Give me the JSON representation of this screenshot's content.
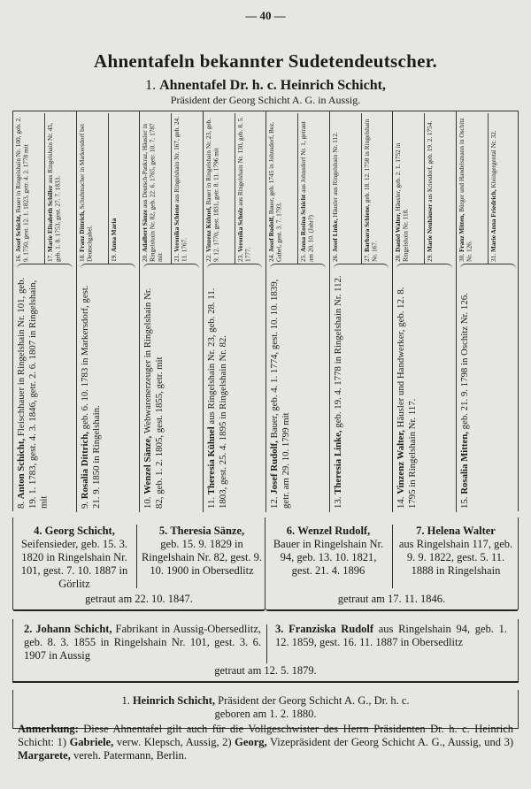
{
  "page_number": "— 40 —",
  "title": "Ahnentafeln bekannter Sudetendeutscher.",
  "subtitle_number": "1.",
  "subtitle": "Ahnentafel Dr. h. c. Heinrich Schicht,",
  "subtitle_sub": "Präsident der Georg Schicht A. G. in Aussig.",
  "great_grandparents": [
    {
      "no": "16.",
      "name": "Josef Schicht,",
      "text": "Bauer in Ringelshain Nr. 100, geb. 2. 9. 1750, gest. 12. 1. 1823, getr. 4. 2. 1778 mit"
    },
    {
      "no": "17.",
      "name": "Marie Elisabeth Schiller",
      "text": "aus Ringelshain Nr. 45, geb. 1. 8. 1753, gest. 27. 7. 1833."
    },
    {
      "no": "18.",
      "name": "Franz Dittrich,",
      "text": "Schuhmacher in Markersdorf bei Deutschgabel."
    },
    {
      "no": "19.",
      "name": "Anna Maria",
      "text": ""
    },
    {
      "no": "20.",
      "name": "Adalbert Sänze",
      "text": "aus Deutsch-Pankraz, Häusler in Ringelshain Nr. 82, geb. 22. 6. 1765, getr. 10. 7. 1787 mit"
    },
    {
      "no": "21.",
      "name": "Veronika Schiene",
      "text": "aus Ringelshain Nr. 167, geb. 24. 11. 1767."
    },
    {
      "no": "22.",
      "name": "Vinzenz Kühnel,",
      "text": "Bauer in Ringelshain Nr. 23, geb. 9. 12. 1770, gest. 1831, getr. 8. 11. 1796 mit"
    },
    {
      "no": "23.",
      "name": "Veronika Scholz",
      "text": "aus Ringelshain Nr. 130, geb. 8. 5. 1777."
    },
    {
      "no": "24.",
      "name": "Josef Rudolf,",
      "text": "Bauer, geb. 1745 in Johnsdorf, Bez. Gabel, gest. 3. 7. 1793."
    },
    {
      "no": "25.",
      "name": "Anna Rosina Schicht",
      "text": "aus Johnsdorf Nr. 1, getraut am 20. 10. (Jahr?)"
    },
    {
      "no": "26.",
      "name": "Josef Linke,",
      "text": "Häusler aus Ringelshain Nr. 112."
    },
    {
      "no": "27.",
      "name": "Barbara Schiene,",
      "text": "geb. 18. 12. 1758 in Ringelshain Nr. 167."
    },
    {
      "no": "28.",
      "name": "Daniel Walter,",
      "text": "Häusler, geb. 2. 1. 1752 in Ringelshain Nr. 118."
    },
    {
      "no": "29.",
      "name": "Marie Neuhäuser",
      "text": "aus Kriesdorf, geb. 19. 2. 1754."
    },
    {
      "no": "30.",
      "name": "Franz Mitten,",
      "text": "Bürger und Handelsmann in Oschitz Nr. 126."
    },
    {
      "no": "31.",
      "name": "Marie Anna Friedrich,",
      "text": "Kleingergental Nr. 32."
    }
  ],
  "grandparents": [
    {
      "no": "8.",
      "name": "Anton Schicht,",
      "text": "Fleischhauer in Ringelshain Nr. 101, geb. 19. 1. 1783, gest. 4. 3. 1846, getr. 2. 6. 1807 in Ringelshain, mit"
    },
    {
      "no": "9.",
      "name": "Rosalia Dittrich,",
      "text": "geb. 6. 10. 1783 in Markersdorf, gest. 21. 9. 1850 in Ringelshain."
    },
    {
      "no": "10.",
      "name": "Wenzel Sänze,",
      "text": "Webwarenerzeuger in Ringelshain Nr. 82, geb. 1. 2. 1805, gest. 1855, getr. mit"
    },
    {
      "no": "11.",
      "name": "Theresia Kühnel",
      "text": "aus Ringelshain Nr. 23, geb. 28. 11. 1803, gest. 25. 4. 1895 in Ringelshain Nr. 82."
    },
    {
      "no": "12.",
      "name": "Josef Rudolf,",
      "text": "Bauer, geb. 4. 1. 1774, gest. 10. 10. 1839, getr. am 29. 10. 1799 mit"
    },
    {
      "no": "13.",
      "name": "Theresia Linke,",
      "text": "geb. 19. 4. 1778 in Ringelshain Nr. 112."
    },
    {
      "no": "14.",
      "name": "Vinzenz Walter,",
      "text": "Häusler und Handwerker, geb. 12. 8. 1795 in Ringelshain Nr. 117."
    },
    {
      "no": "15.",
      "name": "Rosalia Mitten,",
      "text": "geb. 21. 9. 1798 in Oschitz Nr. 126."
    }
  ],
  "parents_gen": [
    {
      "no": "4.",
      "name": "Georg Schicht,",
      "text": "Seifensieder, geb. 15. 3. 1820 in Ringelshain Nr. 101, gest. 7. 10. 1887 in Görlitz"
    },
    {
      "no": "5.",
      "name": "Theresia Sänze,",
      "text": "geb. 15. 9. 1829 in Ringelshain Nr. 82, gest. 9. 10. 1900 in Obersedlitz"
    },
    {
      "no": "6.",
      "name": "Wenzel Rudolf,",
      "text": "Bauer in Ringelshain Nr. 94, geb. 13. 10. 1821, gest. 21. 4. 1896"
    },
    {
      "no": "7.",
      "name": "Helena Walter",
      "text": "aus Ringelshain 117, geb. 9. 9. 1822, gest. 5. 11. 1888 in Ringelshain"
    }
  ],
  "marriage_4_5": "getraut am 22. 10. 1847.",
  "marriage_6_7": "getraut am 17. 11. 1846.",
  "parents": [
    {
      "no": "2.",
      "name": "Johann Schicht,",
      "text": "Fabrikant in Aussig-Obersedlitz, geb. 8. 3. 1855 in Ringelshain Nr. 101, gest. 3. 6. 1907 in Aussig"
    },
    {
      "no": "3.",
      "name": "Franziska Rudolf",
      "text": "aus Ringelshain 94, geb. 1. 12. 1859, gest. 16. 11. 1887 in Obersedlitz"
    }
  ],
  "marriage_2_3": "getraut am 12. 5. 1879.",
  "proband": {
    "no": "1.",
    "name": "Heinrich Schicht,",
    "text": "Präsident der Georg Schicht A. G., Dr. h. c.",
    "born": "geboren am 1. 2. 1880."
  },
  "note": {
    "label": "Anmerkung:",
    "t1": " Diese Ahnentafel gilt auch für die Vollgeschwister des Herrn Präsidenten Dr. h. c. Heinrich Schicht: 1) ",
    "n1": "Gabriele,",
    "t2": " verw. Klepsch, Aussig, 2) ",
    "n2": "Georg,",
    "t3": " Vizepräsident der Georg Schicht A. G., Aussig, und 3) ",
    "n3": "Margarete,",
    "t4": " vereh. Patermann, Berlin."
  }
}
